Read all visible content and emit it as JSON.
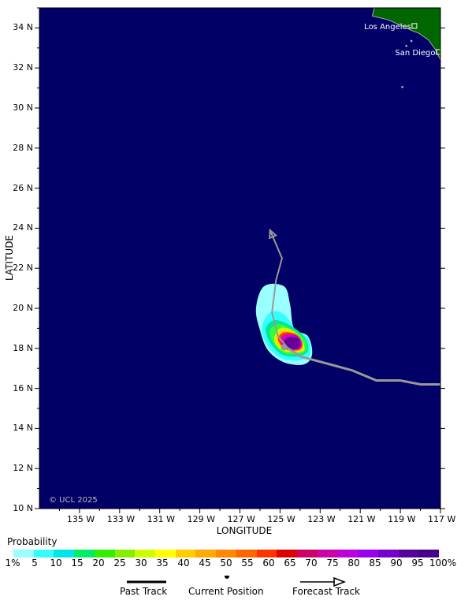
{
  "map": {
    "ocean_color": "#000066",
    "land_color": "#006600",
    "copyright": "© UCL 2025",
    "cities": [
      {
        "name": "Los Angeles",
        "lon": -118.3,
        "lat": 34.1
      },
      {
        "name": "San Diego",
        "lon": -117.1,
        "lat": 32.8
      }
    ],
    "lat_ticks": [
      "34 N",
      "32 N",
      "30 N",
      "28 N",
      "26 N",
      "24 N",
      "22 N",
      "20 N",
      "18 N",
      "16 N",
      "14 N",
      "12 N",
      "10 N"
    ],
    "lon_ticks": [
      "135 W",
      "133 W",
      "131 W",
      "129 W",
      "127 W",
      "125 W",
      "123 W",
      "121 W",
      "119 W",
      "117 W"
    ],
    "lat_range": [
      10,
      35
    ],
    "lon_range": [
      -137,
      -117
    ],
    "y_axis_label": "LATITUDE",
    "x_axis_label": "LONGITUDE"
  },
  "track": {
    "color": "#999999",
    "past": [
      [
        -117.0,
        16.2
      ],
      [
        -118.0,
        16.2
      ],
      [
        -119.0,
        16.4
      ],
      [
        -120.2,
        16.4
      ],
      [
        -121.4,
        16.9
      ],
      [
        -122.5,
        17.2
      ],
      [
        -124.0,
        17.6
      ],
      [
        -124.6,
        18.0
      ]
    ],
    "forecast": [
      [
        -124.6,
        18.0
      ],
      [
        -125.1,
        18.6
      ],
      [
        -125.4,
        19.8
      ],
      [
        -125.2,
        21.4
      ],
      [
        -124.9,
        22.5
      ],
      [
        -125.5,
        23.9
      ]
    ],
    "current_position": [
      -124.8,
      18.05
    ]
  },
  "probability_field": {
    "levels": [
      {
        "value": 1,
        "color": "#99ffff",
        "outline": [
          [
            -125.8,
            21.1
          ],
          [
            -124.8,
            21.1
          ],
          [
            -124.5,
            20.2
          ],
          [
            -124.3,
            19.0
          ],
          [
            -123.6,
            18.6
          ],
          [
            -123.4,
            17.7
          ],
          [
            -123.8,
            17.2
          ],
          [
            -124.8,
            17.3
          ],
          [
            -125.6,
            17.9
          ],
          [
            -126.0,
            18.9
          ],
          [
            -126.2,
            20.0
          ]
        ]
      },
      {
        "value": 5,
        "color": "#33ffff",
        "outline": [
          [
            -125.5,
            19.8
          ],
          [
            -124.8,
            19.7
          ],
          [
            -124.2,
            18.9
          ],
          [
            -123.6,
            18.5
          ],
          [
            -123.5,
            17.7
          ],
          [
            -124.0,
            17.4
          ],
          [
            -124.9,
            17.5
          ],
          [
            -125.6,
            18.1
          ],
          [
            -125.9,
            19.0
          ]
        ]
      },
      {
        "value": 10,
        "color": "#00e69a",
        "outline": [
          [
            -125.3,
            19.4
          ],
          [
            -124.6,
            19.2
          ],
          [
            -123.8,
            18.6
          ],
          [
            -123.6,
            17.9
          ],
          [
            -124.1,
            17.6
          ],
          [
            -124.9,
            17.7
          ],
          [
            -125.5,
            18.3
          ],
          [
            -125.7,
            19.0
          ]
        ]
      },
      {
        "value": 20,
        "color": "#33ff33",
        "outline": [
          [
            -125.1,
            19.2
          ],
          [
            -124.5,
            19.0
          ],
          [
            -123.8,
            18.5
          ],
          [
            -123.7,
            17.9
          ],
          [
            -124.2,
            17.7
          ],
          [
            -124.9,
            17.8
          ],
          [
            -125.4,
            18.4
          ],
          [
            -125.5,
            18.9
          ]
        ]
      },
      {
        "value": 30,
        "color": "#ccff00",
        "outline": [
          [
            -125.0,
            19.0
          ],
          [
            -124.4,
            18.9
          ],
          [
            -123.9,
            18.4
          ],
          [
            -123.8,
            17.9
          ],
          [
            -124.3,
            17.8
          ],
          [
            -124.9,
            17.9
          ],
          [
            -125.3,
            18.4
          ]
        ]
      },
      {
        "value": 40,
        "color": "#ffcc00",
        "outline": [
          [
            -124.9,
            18.9
          ],
          [
            -124.3,
            18.8
          ],
          [
            -123.9,
            18.3
          ],
          [
            -123.9,
            17.9
          ],
          [
            -124.4,
            17.85
          ],
          [
            -124.9,
            18.0
          ],
          [
            -125.2,
            18.5
          ]
        ]
      },
      {
        "value": 60,
        "color": "#ff3300",
        "outline": [
          [
            -124.8,
            18.8
          ],
          [
            -124.2,
            18.7
          ],
          [
            -123.9,
            18.3
          ],
          [
            -124.0,
            17.95
          ],
          [
            -124.5,
            17.9
          ],
          [
            -124.9,
            18.1
          ],
          [
            -125.1,
            18.5
          ]
        ]
      },
      {
        "value": 75,
        "color": "#cc00cc",
        "outline": [
          [
            -124.7,
            18.7
          ],
          [
            -124.1,
            18.6
          ],
          [
            -123.9,
            18.2
          ],
          [
            -124.1,
            17.95
          ],
          [
            -124.6,
            17.95
          ],
          [
            -124.9,
            18.2
          ],
          [
            -124.95,
            18.5
          ]
        ]
      },
      {
        "value": 90,
        "color": "#660099",
        "outline": [
          [
            -124.6,
            18.55
          ],
          [
            -124.1,
            18.5
          ],
          [
            -124.0,
            18.15
          ],
          [
            -124.2,
            17.98
          ],
          [
            -124.6,
            18.0
          ],
          [
            -124.8,
            18.3
          ]
        ]
      }
    ]
  },
  "legend": {
    "title": "Probability",
    "colors": [
      "#99ffff",
      "#33ffff",
      "#00e6e6",
      "#00ee66",
      "#33ee00",
      "#88ee00",
      "#ccff00",
      "#ffff00",
      "#ffcc00",
      "#ffaa00",
      "#ff8800",
      "#ff6600",
      "#ff3300",
      "#dd0000",
      "#cc0066",
      "#cc00aa",
      "#bb00dd",
      "#9900ee",
      "#7700cc",
      "#550099",
      "#440088"
    ],
    "labels": [
      "1%",
      "5",
      "10",
      "15",
      "20",
      "25",
      "30",
      "35",
      "40",
      "45",
      "50",
      "55",
      "60",
      "65",
      "70",
      "75",
      "80",
      "85",
      "90",
      "95",
      "100%"
    ],
    "past_track": "Past Track",
    "current_position": "Current Position",
    "forecast_track": "Forecast Track"
  }
}
